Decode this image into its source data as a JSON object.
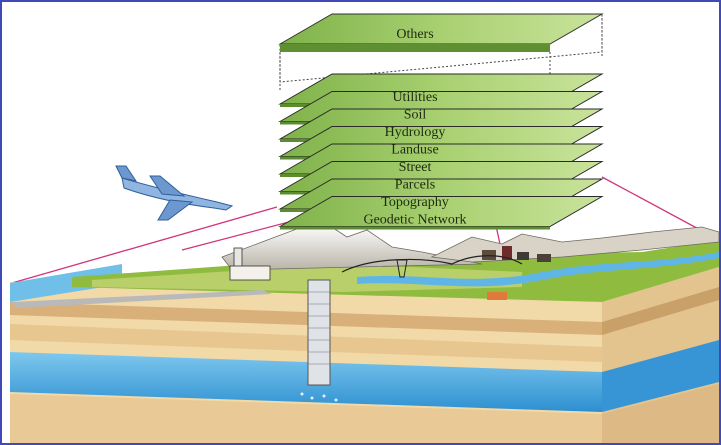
{
  "layers": [
    {
      "label": "Others"
    },
    {
      "label": "Utilities"
    },
    {
      "label": "Soil"
    },
    {
      "label": "Hydrology"
    },
    {
      "label": "Landuse"
    },
    {
      "label": "Street"
    },
    {
      "label": "Parcels"
    },
    {
      "label": "Topography"
    },
    {
      "label": "Geodetic Network"
    }
  ],
  "colors": {
    "layer_fill": "#9dc76a",
    "layer_top": "#b8d98a",
    "frame": "#3f4ab8",
    "water": "#3aa0d8",
    "soil_light": "#f1d9a8",
    "soil_dark": "#d9b07a",
    "grass": "#8fbc3f",
    "projection_lines": "#d0357a"
  }
}
